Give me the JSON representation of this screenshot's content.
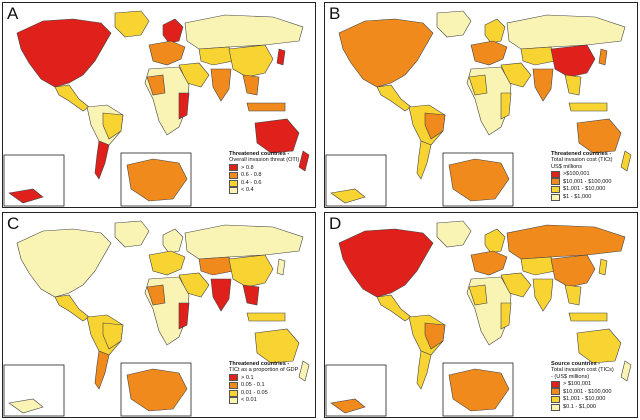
{
  "colors": {
    "level1": "#e0201b",
    "level2": "#f08a1c",
    "level3": "#f8d432",
    "level4": "#f9f3b4",
    "ocean": "#ffffff",
    "outline": "#444444"
  },
  "panels": [
    {
      "letter": "A",
      "legend": {
        "title": "Threatened countries -",
        "subtitle": "Overall invasion threat (OTI)",
        "subtitle2": "",
        "items": [
          {
            "label": "> 0.8",
            "level": "level1"
          },
          {
            "label": "0.6 - 0.8",
            "level": "level2"
          },
          {
            "label": "0.4 - 0.6",
            "level": "level3"
          },
          {
            "label": "< 0.4",
            "level": "level4"
          }
        ]
      }
    },
    {
      "letter": "B",
      "legend": {
        "title": "Threatened countries -",
        "subtitle": "Total invasion cost (TICt)",
        "subtitle2": "US$ millions",
        "items": [
          {
            "label": ">$100,001",
            "level": "level1"
          },
          {
            "label": "$10,001 - $100,000",
            "level": "level2"
          },
          {
            "label": "$1,001 - $10,000",
            "level": "level3"
          },
          {
            "label": "$1 - $1,000",
            "level": "level4"
          }
        ]
      }
    },
    {
      "letter": "C",
      "legend": {
        "title": "Threatened countries -",
        "subtitle": "TICt as a proportion of GDP",
        "subtitle2": "",
        "items": [
          {
            "label": "> 0.1",
            "level": "level1"
          },
          {
            "label": "0.05 - 0.1",
            "level": "level2"
          },
          {
            "label": "0.01 - 0.05",
            "level": "level3"
          },
          {
            "label": "< 0.01",
            "level": "level4"
          }
        ]
      }
    },
    {
      "letter": "D",
      "legend": {
        "title": "Source countries -",
        "subtitle": "Total invasion cost (TICs)",
        "subtitle2": "- (US$ millions)",
        "items": [
          {
            "label": "> $100,001",
            "level": "level1"
          },
          {
            "label": "$10,001 - $100,000",
            "level": "level2"
          },
          {
            "label": "$1,001 - $10,000",
            "level": "level3"
          },
          {
            "label": "$0.1 - $1,000",
            "level": "level4"
          }
        ]
      }
    }
  ],
  "fills": {
    "A": {
      "north-america": "level1",
      "greenland": "level3",
      "central-america": "level3",
      "south-america": "level4",
      "south-cone": "level1",
      "europe": "level2",
      "scandinavia": "level1",
      "africa": "level4",
      "west-africa": "level2",
      "east-africa": "level1",
      "middle-east": "level3",
      "russia": "level4",
      "central-asia": "level3",
      "china": "level3",
      "india": "level2",
      "se-asia": "level2",
      "japan": "level1",
      "indonesia": "level2",
      "australia": "level1",
      "new-zealand": "level1",
      "brazil": "level3",
      "inset-left": "level1",
      "inset-europe": "level2"
    },
    "B": {
      "north-america": "level2",
      "greenland": "level4",
      "central-america": "level3",
      "south-america": "level3",
      "south-cone": "level3",
      "europe": "level2",
      "scandinavia": "level3",
      "africa": "level4",
      "west-africa": "level3",
      "east-africa": "level3",
      "middle-east": "level3",
      "russia": "level4",
      "central-asia": "level3",
      "china": "level1",
      "india": "level2",
      "se-asia": "level3",
      "japan": "level2",
      "indonesia": "level3",
      "australia": "level2",
      "new-zealand": "level3",
      "brazil": "level2",
      "inset-left": "level3",
      "inset-europe": "level2"
    },
    "C": {
      "north-america": "level4",
      "greenland": "level4",
      "central-america": "level3",
      "south-america": "level3",
      "south-cone": "level2",
      "europe": "level3",
      "scandinavia": "level4",
      "africa": "level4",
      "west-africa": "level2",
      "east-africa": "level1",
      "middle-east": "level3",
      "russia": "level4",
      "central-asia": "level2",
      "china": "level3",
      "india": "level1",
      "se-asia": "level1",
      "japan": "level4",
      "indonesia": "level3",
      "australia": "level3",
      "new-zealand": "level4",
      "brazil": "level3",
      "inset-left": "level4",
      "inset-europe": "level2"
    },
    "D": {
      "north-america": "level1",
      "greenland": "level4",
      "central-america": "level3",
      "south-america": "level3",
      "south-cone": "level3",
      "europe": "level2",
      "scandinavia": "level3",
      "africa": "level4",
      "west-africa": "level3",
      "east-africa": "level3",
      "middle-east": "level3",
      "russia": "level2",
      "central-asia": "level3",
      "china": "level2",
      "india": "level3",
      "se-asia": "level3",
      "japan": "level3",
      "indonesia": "level3",
      "australia": "level3",
      "new-zealand": "level4",
      "brazil": "level2",
      "inset-left": "level2",
      "inset-europe": "level2"
    }
  }
}
